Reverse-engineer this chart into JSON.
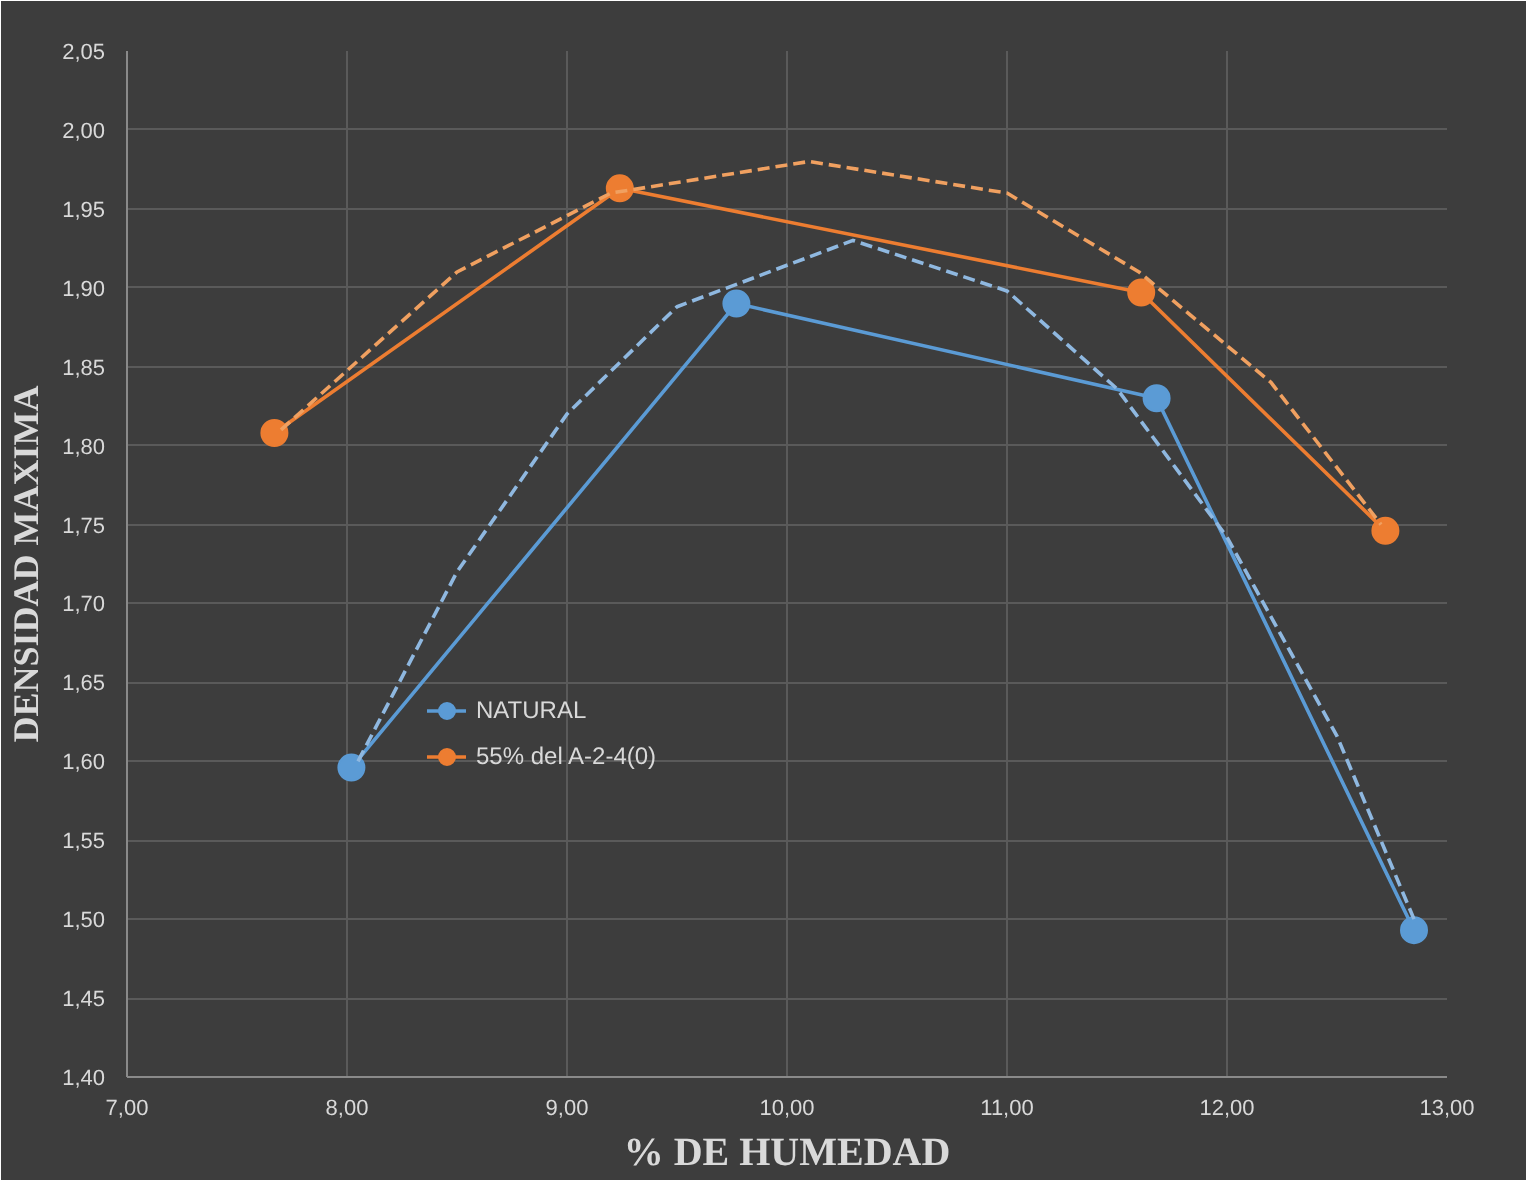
{
  "chart_data": {
    "type": "line",
    "xlabel": "% DE HUMEDAD",
    "ylabel": "DENSIDAD MAXIMA",
    "xlim": [
      7,
      13
    ],
    "ylim": [
      1.4,
      2.05
    ],
    "xticks": [
      {
        "value": 7,
        "label": "7,00"
      },
      {
        "value": 8,
        "label": "8,00"
      },
      {
        "value": 9,
        "label": "9,00"
      },
      {
        "value": 10,
        "label": "10,00"
      },
      {
        "value": 11,
        "label": "11,00"
      },
      {
        "value": 12,
        "label": "12,00"
      },
      {
        "value": 13,
        "label": "13,00"
      }
    ],
    "yticks": [
      {
        "value": 1.4,
        "label": "1,40"
      },
      {
        "value": 1.45,
        "label": "1,45"
      },
      {
        "value": 1.5,
        "label": "1,50"
      },
      {
        "value": 1.55,
        "label": "1,55"
      },
      {
        "value": 1.6,
        "label": "1,60"
      },
      {
        "value": 1.65,
        "label": "1,65"
      },
      {
        "value": 1.7,
        "label": "1,70"
      },
      {
        "value": 1.75,
        "label": "1,75"
      },
      {
        "value": 1.8,
        "label": "1,80"
      },
      {
        "value": 1.85,
        "label": "1,85"
      },
      {
        "value": 1.9,
        "label": "1,90"
      },
      {
        "value": 1.95,
        "label": "1,95"
      },
      {
        "value": 2.0,
        "label": "2,00"
      },
      {
        "value": 2.05,
        "label": "2,05"
      }
    ],
    "grid": true,
    "legend": "center",
    "series": [
      {
        "name": "NATURAL",
        "color": "#5b9bd5",
        "marker": "circle",
        "line_style": "solid",
        "x": [
          8.02,
          9.77,
          11.68,
          12.85
        ],
        "values": [
          1.596,
          1.89,
          1.83,
          1.493
        ]
      },
      {
        "name": "55% del A-2-4(0)",
        "color": "#ed7d31",
        "marker": "circle",
        "line_style": "solid",
        "x": [
          7.67,
          9.24,
          11.61,
          12.72
        ],
        "values": [
          1.808,
          1.963,
          1.897,
          1.746
        ]
      },
      {
        "color": "#8fb8e0",
        "marker": "none",
        "line_style": "dashed",
        "x": [
          8.05,
          8.5,
          9.0,
          9.5,
          10.3,
          11.0,
          11.5,
          12.0,
          12.5,
          12.85
        ],
        "values": [
          1.6,
          1.72,
          1.82,
          1.888,
          1.93,
          1.898,
          1.836,
          1.742,
          1.616,
          1.5
        ]
      },
      {
        "color": "#f0a060",
        "marker": "none",
        "line_style": "dashed",
        "x": [
          7.7,
          8.5,
          9.2,
          10.1,
          11.0,
          11.6,
          12.2,
          12.7
        ],
        "values": [
          1.81,
          1.91,
          1.96,
          1.98,
          1.96,
          1.91,
          1.84,
          1.75
        ]
      }
    ]
  }
}
